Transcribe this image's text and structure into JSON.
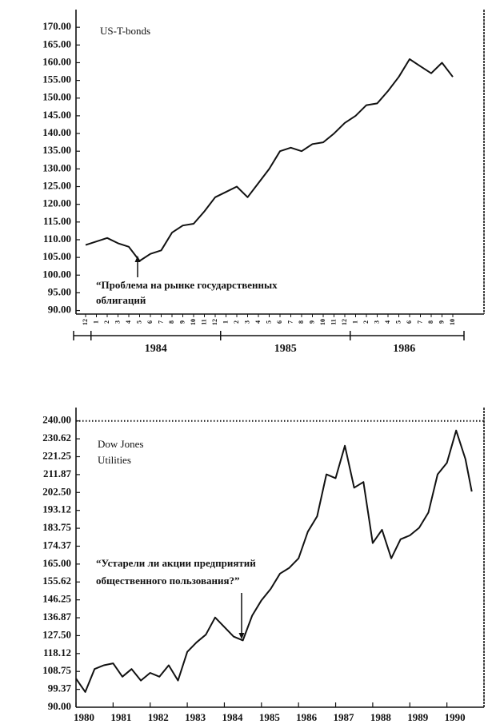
{
  "chart_data": [
    {
      "type": "line",
      "title": "US-T-bonds",
      "annotation": [
        "“Проблема на рынке государственных",
        "облигаций"
      ],
      "categories": [
        "12",
        "1",
        "2",
        "3",
        "4",
        "5",
        "6",
        "7",
        "8",
        "9",
        "10",
        "11",
        "12",
        "1",
        "2",
        "3",
        "4",
        "5",
        "6",
        "7",
        "8",
        "9",
        "10",
        "11",
        "12",
        "1",
        "2",
        "3",
        "4",
        "5",
        "6",
        "7",
        "8",
        "9",
        "10"
      ],
      "years": [
        "1984",
        "1985",
        "1986"
      ],
      "values": [
        108.5,
        109.5,
        110.5,
        109,
        108,
        104,
        106,
        107,
        112,
        114,
        114.5,
        118,
        122,
        123.5,
        125,
        122,
        126,
        130,
        135,
        136,
        135,
        137,
        137.5,
        140,
        143,
        145,
        148,
        148.5,
        152,
        156,
        161,
        159,
        157,
        160,
        156
      ],
      "color": "#111111",
      "ylim": [
        89,
        175
      ],
      "yticks": [
        {
          "value": 170,
          "label": "170.00"
        },
        {
          "value": 165,
          "label": "165.00"
        },
        {
          "value": 160,
          "label": "160.00"
        },
        {
          "value": 155,
          "label": "155.00"
        },
        {
          "value": 150,
          "label": "150.00"
        },
        {
          "value": 145,
          "label": "145.00"
        },
        {
          "value": 140,
          "label": "140.00"
        },
        {
          "value": 135,
          "label": "135.00"
        },
        {
          "value": 130,
          "label": "130.00"
        },
        {
          "value": 125,
          "label": "125.00"
        },
        {
          "value": 120,
          "label": "120.00"
        },
        {
          "value": 115,
          "label": "115.00"
        },
        {
          "value": 110,
          "label": "110.00"
        },
        {
          "value": 105,
          "label": "105.00"
        },
        {
          "value": 100,
          "label": "100.00"
        },
        {
          "value": 95,
          "label": "95.00"
        },
        {
          "value": 90,
          "label": "90.00"
        }
      ]
    },
    {
      "type": "line",
      "title": [
        "Dow Jones",
        "Utilities"
      ],
      "annotation": [
        "“Устарели ли акции предприятий",
        "общественного пользования?”"
      ],
      "x": [
        1980,
        1980.25,
        1980.5,
        1980.75,
        1981,
        1981.25,
        1981.5,
        1981.75,
        1982,
        1982.25,
        1982.5,
        1982.75,
        1983,
        1983.25,
        1983.5,
        1983.75,
        1984,
        1984.25,
        1984.5,
        1984.75,
        1985,
        1985.25,
        1985.5,
        1985.75,
        1986,
        1986.25,
        1986.5,
        1986.75,
        1987,
        1987.25,
        1987.5,
        1987.75,
        1988,
        1988.25,
        1988.5,
        1988.75,
        1989,
        1989.25,
        1989.5,
        1989.75,
        1990,
        1990.25,
        1990.5,
        1990.67
      ],
      "values": [
        105,
        98,
        110,
        112,
        113,
        106,
        110,
        104,
        108,
        106,
        112,
        104,
        119,
        124,
        128,
        137,
        132,
        127,
        125,
        138,
        146,
        152,
        160,
        163,
        168,
        182,
        190,
        212,
        210,
        227,
        205,
        208,
        176,
        183,
        168,
        178,
        180,
        184,
        192,
        212,
        218,
        235,
        220,
        203
      ],
      "color": "#111111",
      "xlim": [
        1980,
        1991
      ],
      "xticks": [
        1980,
        1981,
        1982,
        1983,
        1984,
        1985,
        1986,
        1987,
        1988,
        1989,
        1990
      ],
      "ylim": [
        90,
        247
      ],
      "reference_line": 240,
      "yticks": [
        {
          "value": 240,
          "label": "240.00"
        },
        {
          "value": 230.62,
          "label": "230.62"
        },
        {
          "value": 221.25,
          "label": "221.25"
        },
        {
          "value": 211.87,
          "label": "211.87"
        },
        {
          "value": 202.5,
          "label": "202.50"
        },
        {
          "value": 193.12,
          "label": "193.12"
        },
        {
          "value": 183.75,
          "label": "183.75"
        },
        {
          "value": 174.37,
          "label": "174.37"
        },
        {
          "value": 165,
          "label": "165.00"
        },
        {
          "value": 155.62,
          "label": "155.62"
        },
        {
          "value": 146.25,
          "label": "146.25"
        },
        {
          "value": 136.87,
          "label": "136.87"
        },
        {
          "value": 127.5,
          "label": "127.50"
        },
        {
          "value": 118.12,
          "label": "118.12"
        },
        {
          "value": 108.75,
          "label": "108.75"
        },
        {
          "value": 99.37,
          "label": "99.37"
        },
        {
          "value": 90,
          "label": "90.00"
        }
      ]
    }
  ]
}
